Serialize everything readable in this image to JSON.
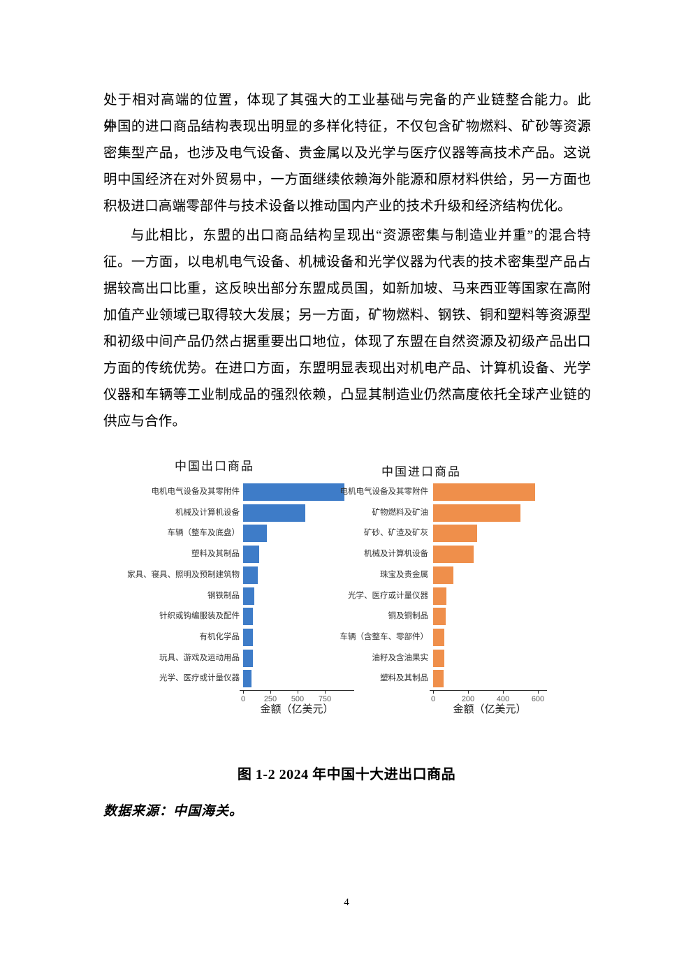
{
  "page": {
    "number": "4"
  },
  "paragraphs": [
    {
      "indent_first": false,
      "lines": [
        "处于相对高端的位置，体现了其强大的工业基础与完备的产业链整合能力。此外，",
        "中国的进口商品结构表现出明显的多样化特征，不仅包含矿物燃料、矿砂等资源",
        "密集型产品，也涉及电气设备、贵金属以及光学与医疗仪器等高技术产品。这说",
        "明中国经济在对外贸易中，一方面继续依赖海外能源和原材料供给，另一方面也",
        "积极进口高端零部件与技术设备以推动国内产业的技术升级和经济结构优化。"
      ]
    },
    {
      "indent_first": true,
      "lines": [
        "与此相比，东盟的出口商品结构呈现出“资源密集与制造业并重”的混合特",
        "征。一方面，以电机电气设备、机械设备和光学仪器为代表的技术密集型产品占",
        "据较高出口比重，这反映出部分东盟成员国，如新加坡、马来西亚等国家在高附",
        "加值产业领域已取得较大发展；另一方面，矿物燃料、钢铁、铜和塑料等资源型",
        "和初级中间产品仍然占据重要出口地位，体现了东盟在自然资源及初级产品出口",
        "方面的传统优势。在进口方面，东盟明显表现出对机电产品、计算机设备、光学",
        "仪器和车辆等工业制成品的强烈依赖，凸显其制造业仍然高度依托全球产业链的",
        "供应与合作。"
      ]
    }
  ],
  "figure": {
    "caption": "图 1-2 2024 年中国十大进出口商品",
    "source": "数据来源：中国海关。"
  },
  "chart_data": [
    {
      "type": "bar",
      "orientation": "horizontal",
      "title": "中国出口商品",
      "xlabel": "金额（亿美元）",
      "categories": [
        "电机电气设备及其零附件",
        "机械及计算机设备",
        "车辆（整车及底盘）",
        "塑料及其制品",
        "家具、寝具、照明及预制建筑物",
        "钢铁制品",
        "针织或钩编服装及配件",
        "有机化学品",
        "玩具、游戏及运动用品",
        "光学、医疗或计量仪器"
      ],
      "values": [
        930,
        570,
        220,
        146,
        136,
        105,
        90,
        88,
        88,
        78
      ],
      "xticks": [
        0,
        250,
        500,
        750
      ],
      "xlim": [
        0,
        1000
      ],
      "grid": false,
      "legend": false,
      "bar_color": "#3E7CC8"
    },
    {
      "type": "bar",
      "orientation": "horizontal",
      "title": "中国进口商品",
      "xlabel": "金额（亿美元）",
      "categories": [
        "电机电气设备及其零附件",
        "矿物燃料及矿油",
        "矿砂、矿渣及矿灰",
        "机械及计算机设备",
        "珠宝及贵金属",
        "光学、医疗或计量仪器",
        "铜及铜制品",
        "车辆（含整车、零部件）",
        "油籽及含油果实",
        "塑料及其制品"
      ],
      "values": [
        585,
        500,
        250,
        230,
        115,
        75,
        73,
        62,
        62,
        60
      ],
      "xticks": [
        0,
        200,
        400,
        600
      ],
      "xlim": [
        0,
        640
      ],
      "grid": false,
      "legend": false,
      "bar_color": "#EF8F4B"
    }
  ]
}
